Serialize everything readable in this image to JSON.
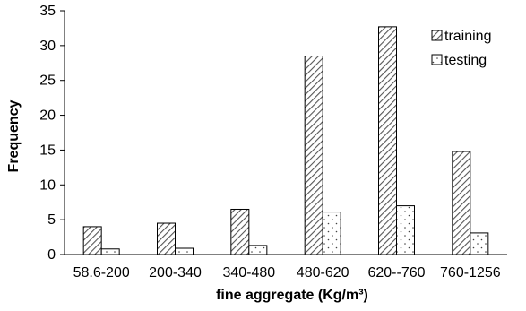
{
  "chart_data": {
    "type": "bar",
    "categories": [
      "58.6-200",
      "200-340",
      "340-480",
      "480-620",
      "620--760",
      "760-1256"
    ],
    "series": [
      {
        "name": "training",
        "values": [
          4,
          4.5,
          6.5,
          28.5,
          32.7,
          14.8
        ]
      },
      {
        "name": "testing",
        "values": [
          0.8,
          0.9,
          1.3,
          6.1,
          7.0,
          3.1
        ]
      }
    ],
    "xlabel": "fine aggregate (Kg/m³)",
    "ylabel": "Frequency",
    "ylim": [
      0,
      35
    ],
    "yticks": [
      0,
      5,
      10,
      15,
      20,
      25,
      30,
      35
    ],
    "grid": false,
    "legend_position": "top-right"
  }
}
